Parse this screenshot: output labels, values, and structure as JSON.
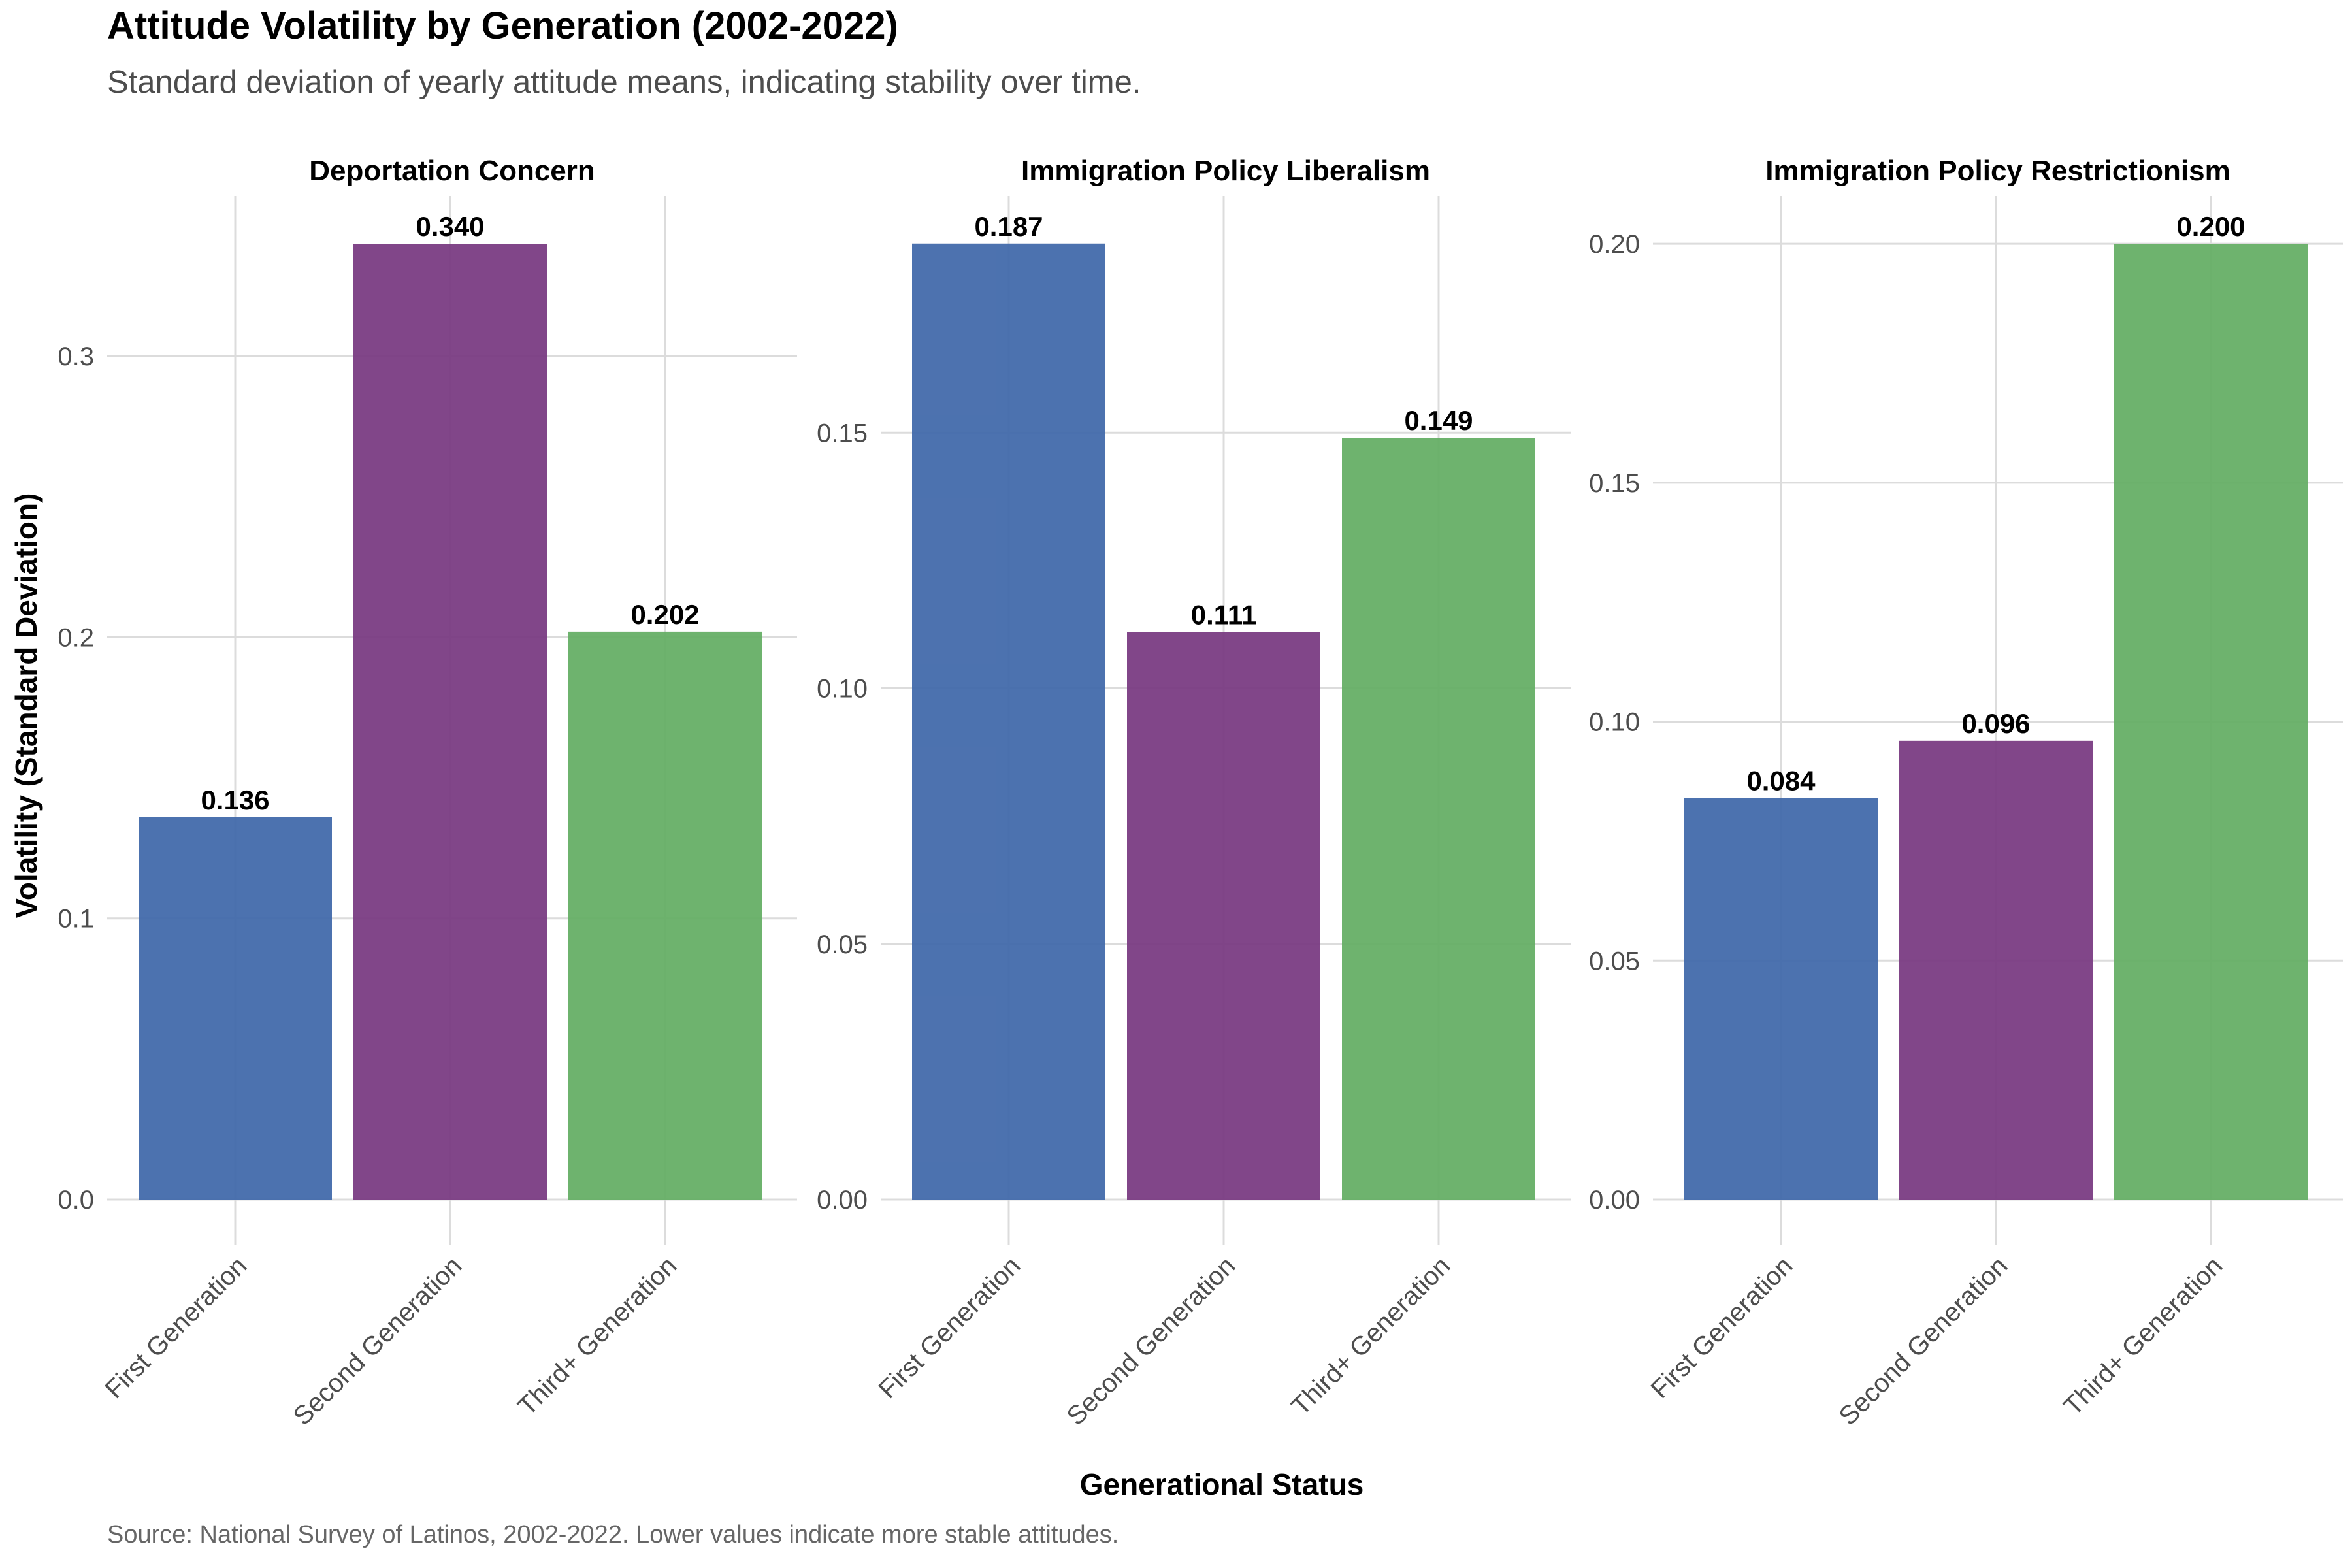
{
  "chart_data": {
    "type": "bar",
    "title": "Attitude Volatility by Generation (2002-2022)",
    "subtitle": "Standard deviation of yearly attitude means, indicating stability over time.",
    "caption": "Source: National Survey of Latinos, 2002-2022. Lower values indicate more stable attitudes.",
    "xlabel": "Generational Status",
    "ylabel": "Volatility (Standard Deviation)",
    "categories": [
      "First Generation",
      "Second Generation",
      "Third+ Generation"
    ],
    "colors": [
      "#3D66A8",
      "#76367F",
      "#62AC62"
    ],
    "grid": true,
    "panels": [
      {
        "title": "Deportation Concern",
        "values": [
          0.136,
          0.34,
          0.202
        ],
        "value_labels": [
          "0.136",
          "0.340",
          "0.202"
        ],
        "ylim": [
          0,
          0.357
        ],
        "yticks": [
          0.0,
          0.1,
          0.2,
          0.3
        ],
        "ytick_labels": [
          "0.0",
          "0.1",
          "0.2",
          "0.3"
        ]
      },
      {
        "title": "Immigration Policy Liberalism",
        "values": [
          0.187,
          0.111,
          0.149
        ],
        "value_labels": [
          "0.187",
          "0.111",
          "0.149"
        ],
        "ylim": [
          0,
          0.1963
        ],
        "yticks": [
          0.0,
          0.05,
          0.1,
          0.15
        ],
        "ytick_labels": [
          "0.00",
          "0.05",
          "0.10",
          "0.15"
        ]
      },
      {
        "title": "Immigration Policy Restrictionism",
        "values": [
          0.084,
          0.096,
          0.2
        ],
        "value_labels": [
          "0.084",
          "0.096",
          "0.200"
        ],
        "ylim": [
          0,
          0.21
        ],
        "yticks": [
          0.0,
          0.05,
          0.1,
          0.15,
          0.2
        ],
        "ytick_labels": [
          "0.00",
          "0.05",
          "0.10",
          "0.15",
          "0.20"
        ]
      }
    ]
  }
}
